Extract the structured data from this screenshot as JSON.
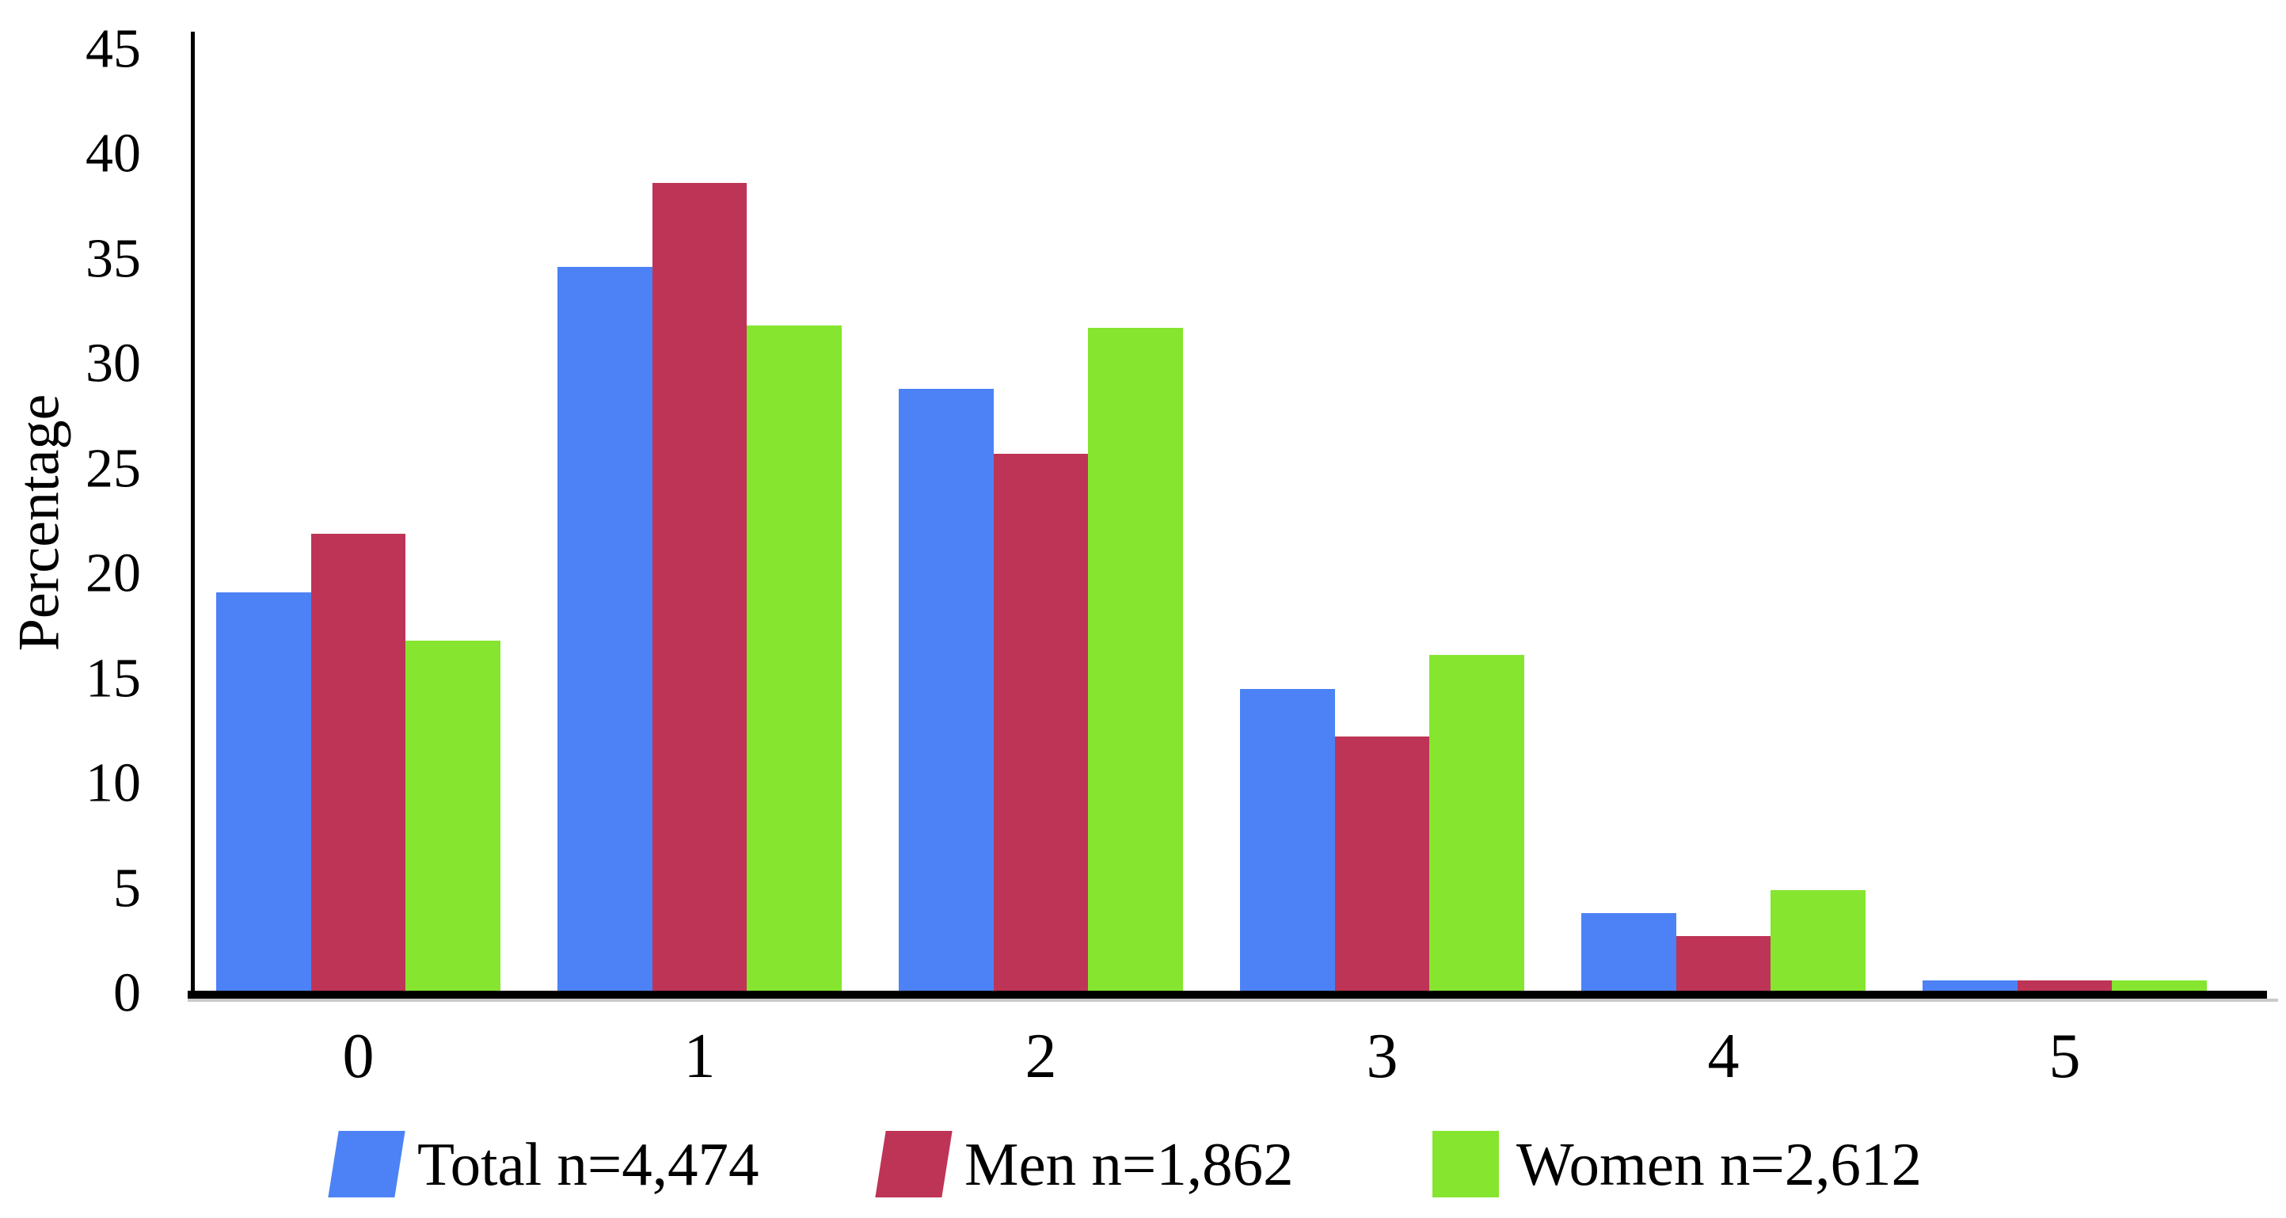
{
  "chart_data": {
    "type": "bar",
    "title": "",
    "ylabel": "Percentage",
    "xlabel": "",
    "ylim": [
      0,
      45
    ],
    "yticks": [
      0,
      5,
      10,
      15,
      20,
      25,
      30,
      35,
      40,
      45
    ],
    "grid": false,
    "legend_position": "bottom",
    "background_color": "#ffffff",
    "axis_color": "#000000",
    "categories": [
      "0",
      "1",
      "2",
      "3",
      "4",
      "5"
    ],
    "series": [
      {
        "name": "Total n=4,474",
        "color": "#4C82F5",
        "values": [
          19.0,
          34.5,
          28.7,
          14.4,
          3.7,
          0.5
        ]
      },
      {
        "name": "Men n=1,862",
        "color": "#BE3456",
        "values": [
          21.8,
          38.5,
          25.6,
          12.1,
          2.6,
          0.5
        ]
      },
      {
        "name": "Women n=2,612",
        "color": "#85E52F",
        "values": [
          16.7,
          31.7,
          31.6,
          16.0,
          4.8,
          0.5
        ]
      }
    ]
  }
}
